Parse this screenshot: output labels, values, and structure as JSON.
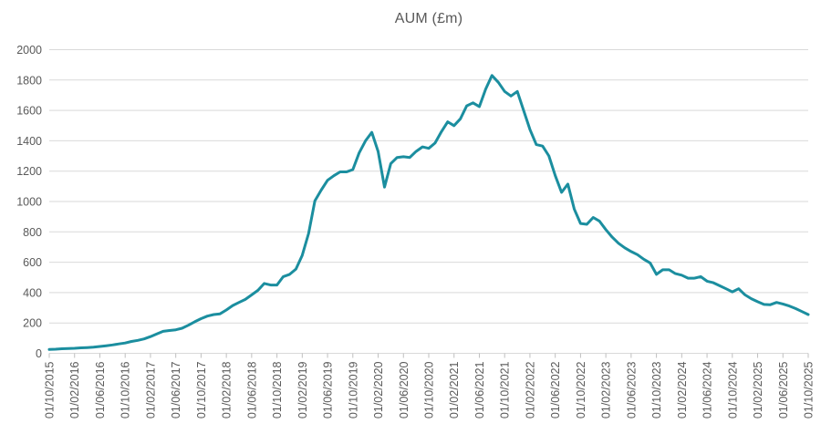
{
  "chart": {
    "title": "AUM (£m)"
  },
  "colors": {
    "line": "#1B8E9F",
    "grid": "#D9D9D9",
    "axis": "#D9D9D9",
    "tick": "#BFBFBF",
    "label": "#595959",
    "title": "#595959",
    "background": "#FFFFFF"
  },
  "chart_data": {
    "type": "line",
    "title": "AUM (£m)",
    "xlabel": "",
    "ylabel": "",
    "legend": "none",
    "grid": "horizontal",
    "ylim": [
      0,
      2000
    ],
    "y_tick_step": 200,
    "y_tick_labels": [
      "0",
      "200",
      "400",
      "600",
      "800",
      "1000",
      "1200",
      "1400",
      "1600",
      "1800",
      "2000"
    ],
    "x_frequency": "monthly",
    "x_start": "01/10/2015",
    "x_end": "01/10/2025",
    "x_tick_every_n_points": 4,
    "x_tick_labels": [
      "01/10/2015",
      "01/02/2016",
      "01/06/2016",
      "01/10/2016",
      "01/02/2017",
      "01/06/2017",
      "01/10/2017",
      "01/02/2018",
      "01/06/2018",
      "01/10/2018",
      "01/02/2019",
      "01/06/2019",
      "01/10/2019",
      "01/02/2020",
      "01/06/2020",
      "01/10/2020",
      "01/02/2021",
      "01/06/2021",
      "01/10/2021",
      "01/02/2022",
      "01/06/2022",
      "01/10/2022",
      "01/02/2023",
      "01/06/2023",
      "01/10/2023",
      "01/02/2024",
      "01/06/2024",
      "01/10/2024",
      "01/02/2025",
      "01/06/2025",
      "01/10/2025"
    ],
    "series": [
      {
        "name": "AUM (£m)",
        "values": [
          25,
          27,
          30,
          32,
          33,
          36,
          38,
          40,
          45,
          50,
          55,
          62,
          68,
          78,
          85,
          95,
          110,
          128,
          145,
          150,
          155,
          165,
          185,
          208,
          228,
          245,
          255,
          260,
          285,
          315,
          335,
          355,
          385,
          415,
          460,
          450,
          450,
          505,
          520,
          555,
          645,
          790,
          1005,
          1075,
          1140,
          1170,
          1195,
          1195,
          1210,
          1320,
          1400,
          1455,
          1330,
          1095,
          1250,
          1290,
          1295,
          1290,
          1330,
          1360,
          1350,
          1385,
          1460,
          1525,
          1500,
          1545,
          1630,
          1650,
          1625,
          1740,
          1830,
          1785,
          1725,
          1695,
          1725,
          1600,
          1475,
          1375,
          1365,
          1300,
          1170,
          1060,
          1115,
          950,
          855,
          850,
          895,
          870,
          815,
          765,
          725,
          695,
          670,
          650,
          620,
          595,
          520,
          550,
          550,
          525,
          515,
          495,
          495,
          505,
          475,
          465,
          445,
          425,
          405,
          425,
          385,
          360,
          340,
          322,
          320,
          335,
          325,
          312,
          295,
          275,
          255
        ]
      }
    ]
  }
}
